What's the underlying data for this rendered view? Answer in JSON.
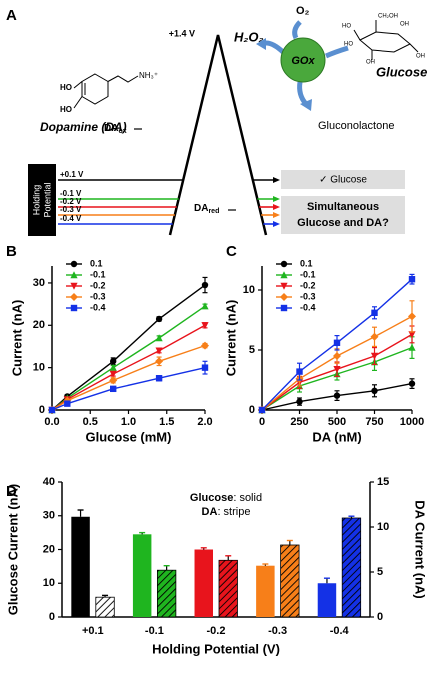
{
  "panel_a": {
    "label": "A",
    "peak": "+1.4 V",
    "h2o2": "H₂O₂",
    "o2": "O₂",
    "enzyme": "GOx",
    "glucose": "Glucose",
    "glucose_atoms": [
      "HO",
      "OH",
      "HO",
      "OH",
      "OH",
      "CH₂OH"
    ],
    "product": "Gluconolactone",
    "dopamine": "Dopamine (DA)",
    "dopamine_atoms": [
      "HO",
      "HO",
      "NH₃⁺"
    ],
    "da_ox": {
      "main": "DA",
      "sub": "ox"
    },
    "da_red": {
      "main": "DA",
      "sub": "red"
    },
    "holding_label": [
      "Holding",
      "Potential"
    ],
    "potentials": [
      "+0.1 V",
      "-0.1 V",
      "-0.2 V",
      "-0.3 V",
      "-0.4 V"
    ],
    "potential_colors": [
      "#000000",
      "#1fb51f",
      "#e8141c",
      "#f77f19",
      "#1431e6"
    ],
    "result_glucose": "✓  Glucose",
    "result_both": [
      "Simultaneous",
      "Glucose and DA?"
    ]
  },
  "chart_data": [
    {
      "type": "line",
      "panel_label": "B",
      "xlabel": "Glucose (mM)",
      "ylabel": "Current (nA)",
      "x": [
        0,
        0.2,
        0.8,
        1.4,
        2.0
      ],
      "xlim": [
        0,
        2
      ],
      "xticks": [
        {
          "value": 0,
          "label": "0.0"
        },
        {
          "value": 0.5,
          "label": "0.5"
        },
        {
          "value": 1,
          "label": "1.0"
        },
        {
          "value": 1.5,
          "label": "1.5"
        },
        {
          "value": 2,
          "label": "2.0"
        }
      ],
      "ylim": [
        0,
        34
      ],
      "yticks": [
        0,
        10,
        20,
        30
      ],
      "legend": "upper-left",
      "series": [
        {
          "name": "0.1",
          "color": "#000000",
          "marker": "circle",
          "values": [
            0,
            3.2,
            11.5,
            21.5,
            29.5
          ],
          "errors": [
            0,
            0.3,
            0.8,
            0.5,
            1.8
          ]
        },
        {
          "name": "-0.1",
          "color": "#1fb51f",
          "marker": "triangle",
          "values": [
            0,
            2.8,
            10,
            17,
            24.5
          ],
          "errors": [
            0,
            0.3,
            0.5,
            0.5,
            0.5
          ]
        },
        {
          "name": "-0.2",
          "color": "#e8141c",
          "marker": "triangle-down",
          "values": [
            0,
            2.5,
            8.5,
            14,
            20
          ],
          "errors": [
            0,
            0.3,
            0.5,
            0.5,
            0.6
          ]
        },
        {
          "name": "-0.3",
          "color": "#f77f19",
          "marker": "diamond",
          "values": [
            0,
            2.2,
            7,
            11.5,
            15.2
          ],
          "errors": [
            0,
            0.3,
            0.6,
            1.0,
            0.5
          ]
        },
        {
          "name": "-0.4",
          "color": "#1431e6",
          "marker": "square",
          "values": [
            0,
            1.5,
            5,
            7.5,
            10
          ],
          "errors": [
            0,
            0.3,
            0.5,
            0.6,
            1.5
          ]
        }
      ]
    },
    {
      "type": "line",
      "panel_label": "C",
      "xlabel": "DA (nM)",
      "ylabel": "Current (nA)",
      "x": [
        0,
        250,
        500,
        750,
        1000
      ],
      "xlim": [
        0,
        1000
      ],
      "xticks": [
        0,
        250,
        500,
        750,
        1000
      ],
      "ylim": [
        0,
        12
      ],
      "yticks": [
        0,
        5,
        10
      ],
      "legend": "upper-left",
      "series": [
        {
          "name": "0.1",
          "color": "#000000",
          "marker": "circle",
          "values": [
            0,
            0.7,
            1.2,
            1.6,
            2.2
          ],
          "errors": [
            0,
            0.3,
            0.4,
            0.5,
            0.4
          ]
        },
        {
          "name": "-0.1",
          "color": "#1fb51f",
          "marker": "triangle",
          "values": [
            0,
            2,
            3,
            4,
            5.2
          ],
          "errors": [
            0,
            0.5,
            0.5,
            0.7,
            0.9
          ]
        },
        {
          "name": "-0.2",
          "color": "#e8141c",
          "marker": "triangle-down",
          "values": [
            0,
            2.3,
            3.4,
            4.5,
            6.3
          ],
          "errors": [
            0,
            0.5,
            0.6,
            0.7,
            0.7
          ]
        },
        {
          "name": "-0.3",
          "color": "#f77f19",
          "marker": "diamond",
          "values": [
            0,
            2.6,
            4.5,
            6.1,
            7.8
          ],
          "errors": [
            0,
            0.6,
            0.6,
            0.8,
            1.3
          ]
        },
        {
          "name": "-0.4",
          "color": "#1431e6",
          "marker": "square",
          "values": [
            0,
            3.2,
            5.6,
            8.1,
            10.9
          ],
          "errors": [
            0,
            0.7,
            0.6,
            0.5,
            0.4
          ]
        }
      ]
    },
    {
      "type": "bar",
      "panel_label": "D",
      "xlabel": "Holding Potential (V)",
      "ylabel": "Glucose Current (nA)",
      "y2label": "DA Current (nA)",
      "categories": [
        "+0.1",
        "-0.1",
        "-0.2",
        "-0.3",
        "-0.4"
      ],
      "colors": [
        "#000000",
        "#1fb51f",
        "#e8141c",
        "#f77f19",
        "#1431e6"
      ],
      "ylim": [
        0,
        40
      ],
      "yticks": [
        0,
        10,
        20,
        30,
        40
      ],
      "y2lim": [
        0,
        15
      ],
      "y2ticks": [
        0,
        5,
        10,
        15
      ],
      "annotation": [
        {
          "bold": "Glucose",
          "text": ": solid"
        },
        {
          "bold": "DA",
          "text": ": stripe"
        }
      ],
      "series": [
        {
          "fill": "solid",
          "values": [
            29.7,
            24.5,
            20,
            15.2,
            10
          ],
          "errors": [
            2,
            0.5,
            0.5,
            0.5,
            1.5
          ]
        },
        {
          "fill": "stripe",
          "axis": "y2",
          "values": [
            2.2,
            5.2,
            6.3,
            8,
            11
          ],
          "errors": [
            0.2,
            0.5,
            0.5,
            0.5,
            0.2
          ]
        }
      ]
    }
  ]
}
